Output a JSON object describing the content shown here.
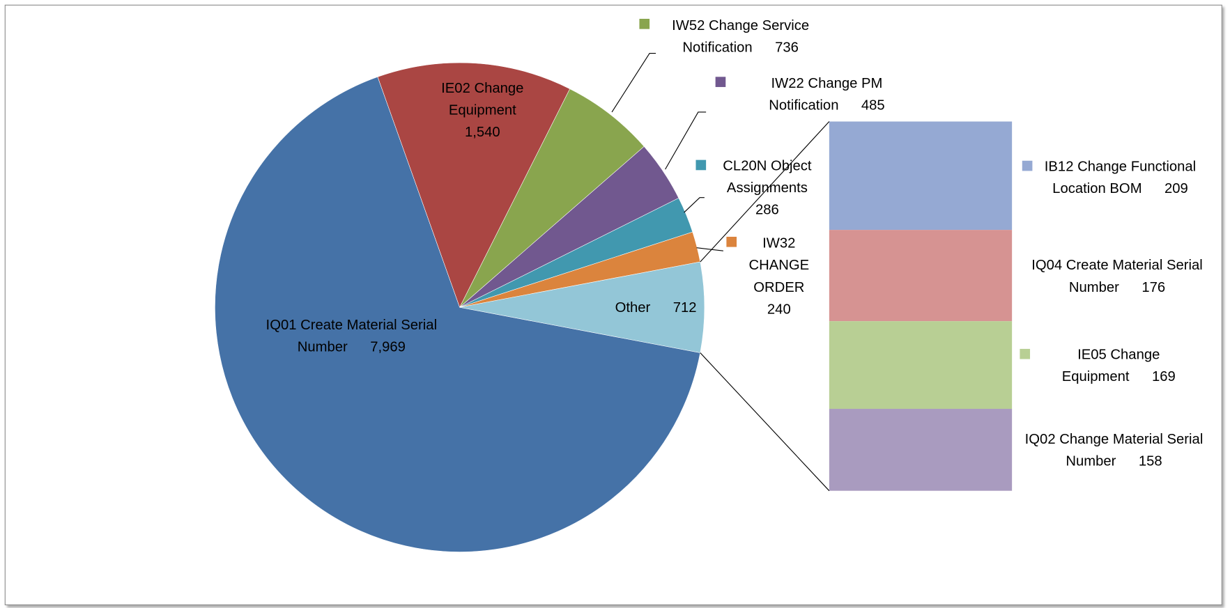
{
  "chart_data": {
    "type": "bar_of_pie",
    "categories": [
      "IQ01 Create Material Serial Number",
      "IE02 Change Equipment",
      "IW52 Change Service Notification",
      "IW22 Change PM Notification",
      "CL20N Object Assignments",
      "IW32 CHANGE ORDER",
      "Other"
    ],
    "values": [
      7969,
      1540,
      736,
      485,
      286,
      240,
      712
    ],
    "value_labels": [
      "7,969",
      "1,540",
      "736",
      "485",
      "286",
      "240",
      "712"
    ],
    "colors": [
      "#4572a7",
      "#aa4643",
      "#89a54e",
      "#71588f",
      "#4198af",
      "#db843d",
      "#93c6d7"
    ],
    "breakdown": {
      "categories": [
        "IB12 Change Functional Location BOM",
        "IQ04 Create Material Serial Number",
        "IE05 Change Equipment",
        "IQ02 Change Material Serial Number"
      ],
      "values": [
        209,
        176,
        169,
        158
      ],
      "colors": [
        "#95a9d3",
        "#d69392",
        "#b8cf94",
        "#a99bbf"
      ]
    }
  }
}
